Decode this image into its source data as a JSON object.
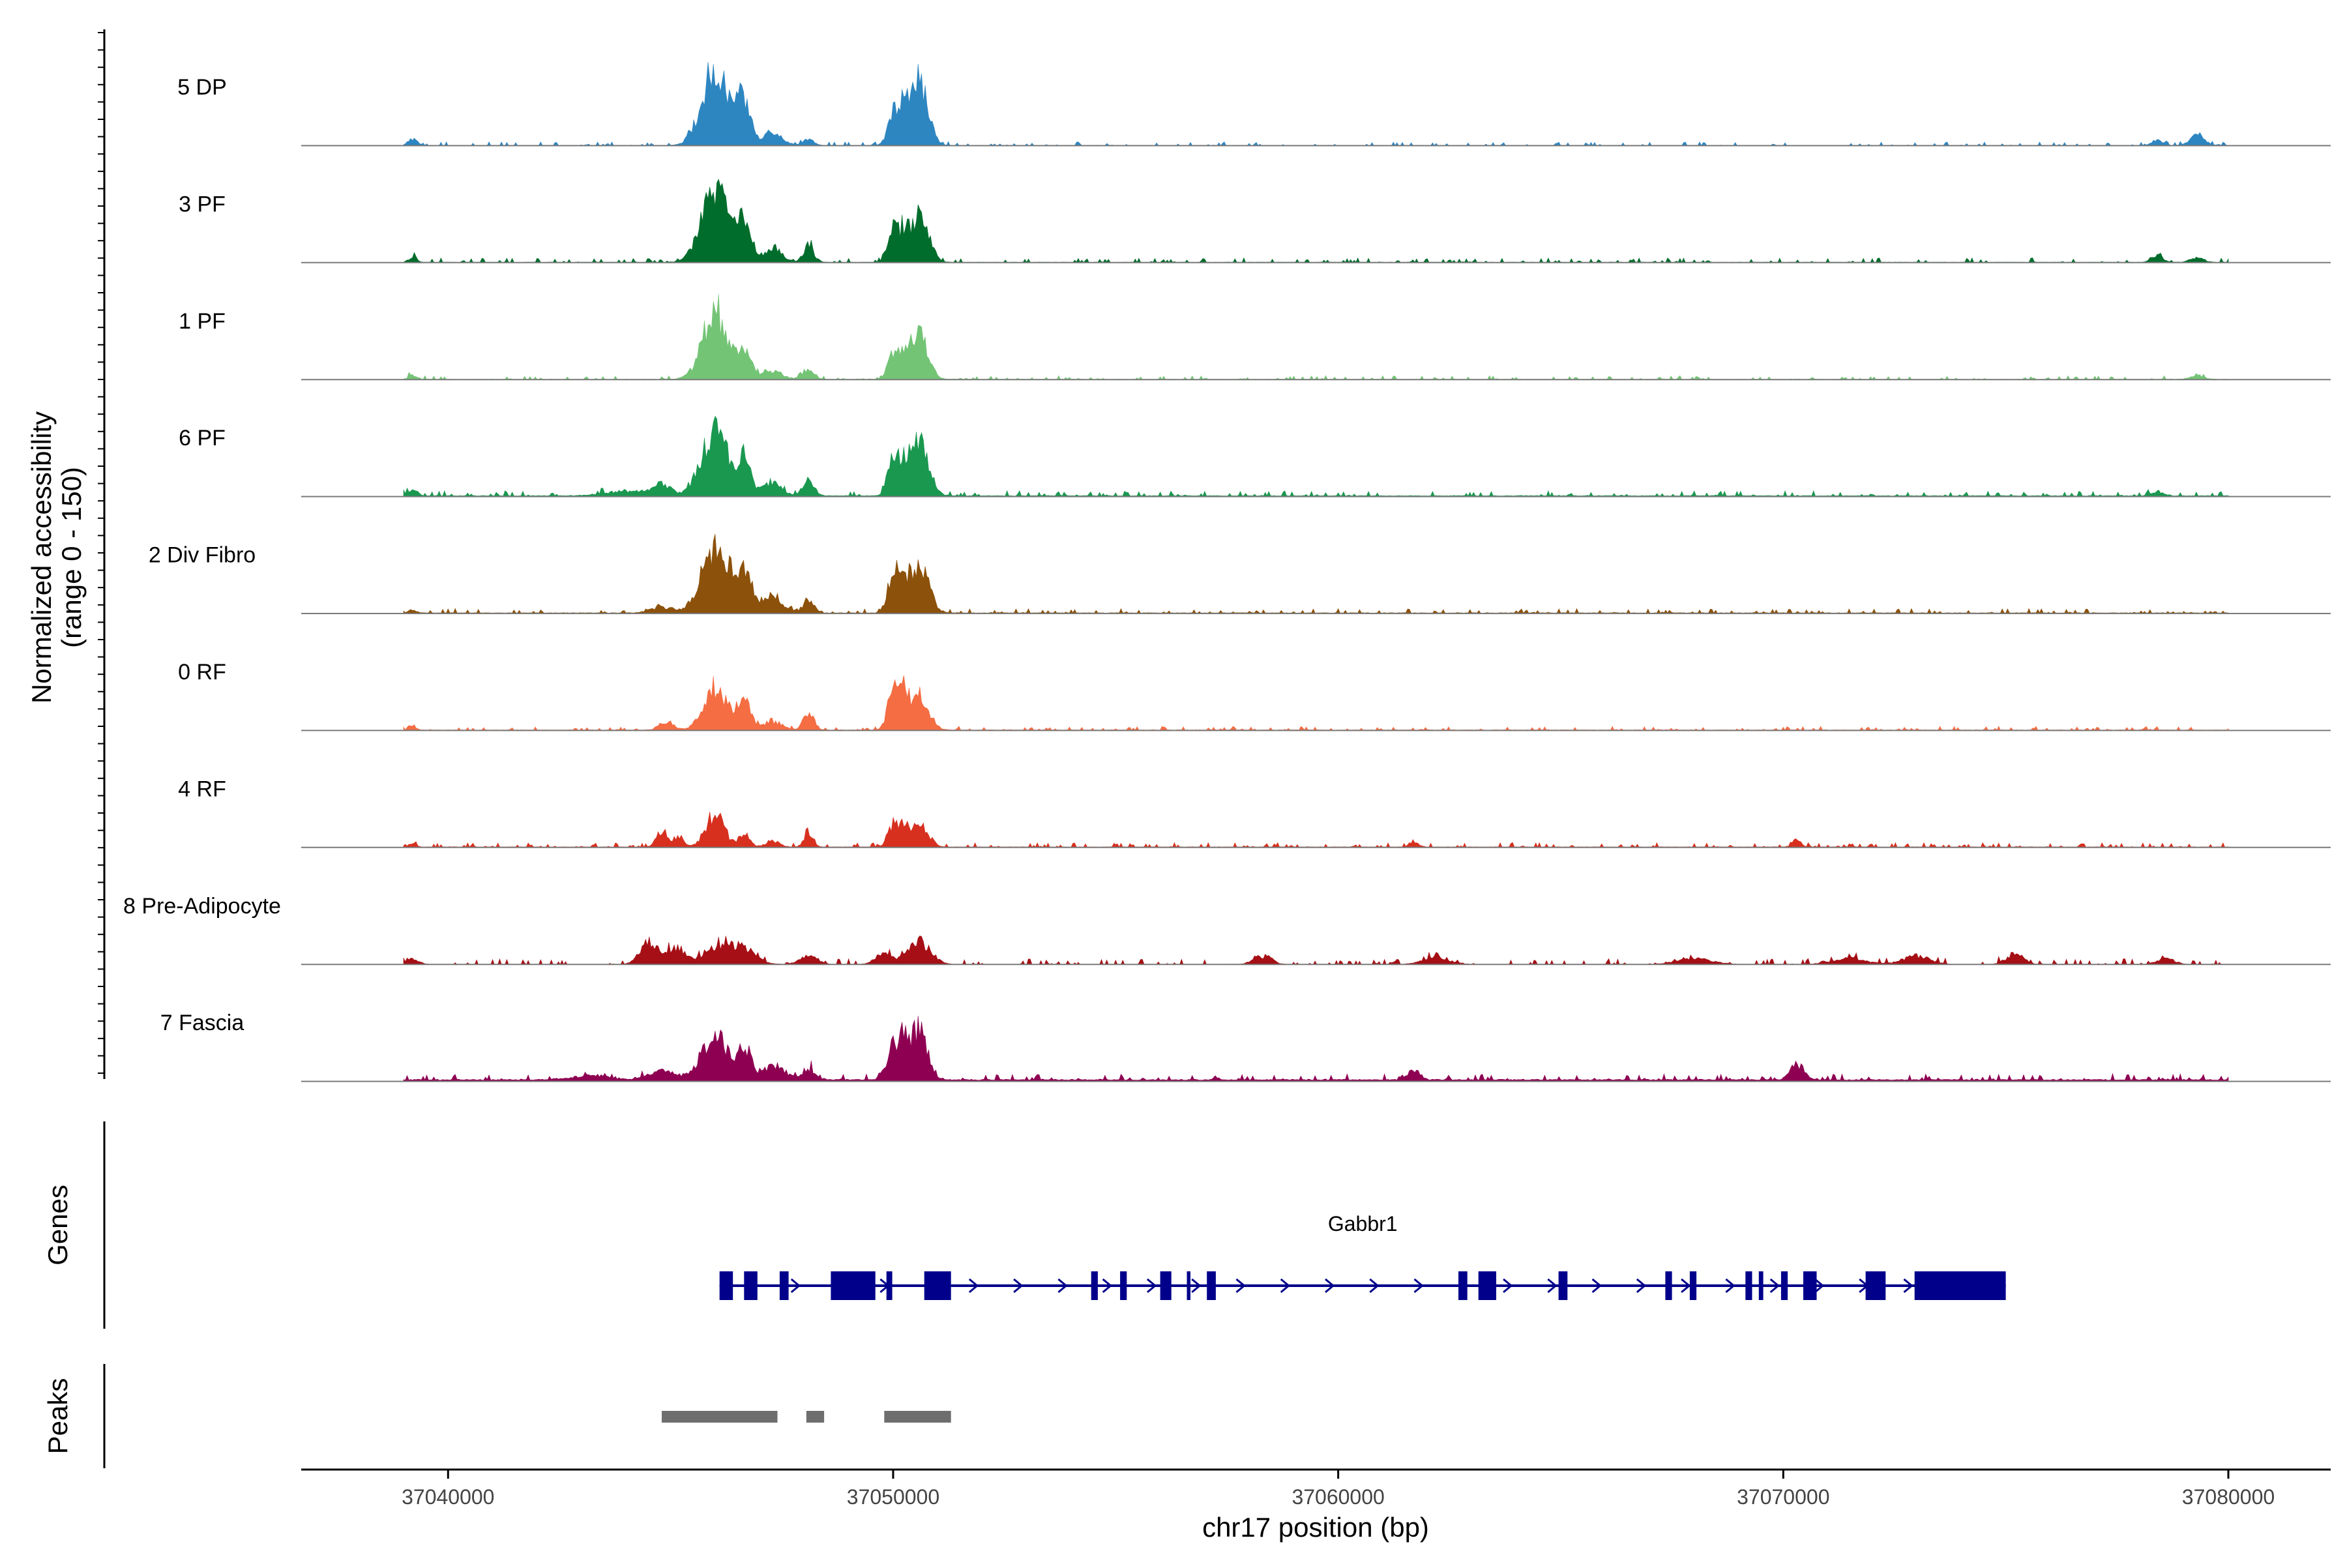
{
  "chart_data": {
    "type": "area",
    "title": "",
    "region": "chr17",
    "xlabel": "chr17 position (bp)",
    "ylabel": "Normalized accessibility",
    "ylabel_range": "(range 0 - 150)",
    "xlim": [
      37036700,
      37082300
    ],
    "data_extent": [
      37039000,
      37080000
    ],
    "ylim": [
      0,
      150
    ],
    "x_ticks": [
      37040000,
      37050000,
      37060000,
      37070000,
      37080000
    ],
    "x_tick_labels": [
      "37040000",
      "37050000",
      "37060000",
      "37070000",
      "37080000"
    ],
    "series": [
      {
        "name": "5 DP",
        "color": "#2E86C1",
        "peaks": [
          [
            37039200,
            12,
            100
          ],
          [
            37046000,
            130,
            300
          ],
          [
            37046650,
            75,
            150
          ],
          [
            37047300,
            25,
            200
          ],
          [
            37048100,
            10,
            120
          ],
          [
            37050000,
            60,
            120
          ],
          [
            37050250,
            70,
            100
          ],
          [
            37050600,
            120,
            180
          ],
          [
            37078400,
            10,
            120
          ],
          [
            37079300,
            18,
            160
          ]
        ],
        "noise": 2.5,
        "background": 0.5
      },
      {
        "name": "3 PF",
        "color": "#006D2C",
        "peaks": [
          [
            37039200,
            10,
            80
          ],
          [
            37046000,
            125,
            300
          ],
          [
            37046650,
            70,
            150
          ],
          [
            37047300,
            25,
            200
          ],
          [
            37048100,
            30,
            120
          ],
          [
            37050000,
            60,
            120
          ],
          [
            37050250,
            45,
            100
          ],
          [
            37050600,
            85,
            200
          ],
          [
            37078400,
            12,
            120
          ],
          [
            37079300,
            8,
            150
          ]
        ],
        "noise": 3,
        "background": 0.8
      },
      {
        "name": "1 PF",
        "color": "#74C476",
        "peaks": [
          [
            37039200,
            8,
            80
          ],
          [
            37046000,
            120,
            280
          ],
          [
            37046650,
            55,
            150
          ],
          [
            37047300,
            15,
            200
          ],
          [
            37048100,
            20,
            120
          ],
          [
            37050000,
            45,
            120
          ],
          [
            37050250,
            40,
            100
          ],
          [
            37050600,
            85,
            180
          ],
          [
            37079300,
            6,
            150
          ]
        ],
        "noise": 2.5,
        "background": 0.7
      },
      {
        "name": "6 PF",
        "color": "#1A9850",
        "peaks": [
          [
            37039200,
            12,
            100
          ],
          [
            37044000,
            8,
            500
          ],
          [
            37044800,
            18,
            200
          ],
          [
            37046000,
            115,
            300
          ],
          [
            37046650,
            60,
            150
          ],
          [
            37047300,
            25,
            200
          ],
          [
            37048100,
            30,
            120
          ],
          [
            37050000,
            70,
            120
          ],
          [
            37050250,
            50,
            100
          ],
          [
            37050600,
            95,
            200
          ],
          [
            37078400,
            8,
            120
          ]
        ],
        "noise": 3.5,
        "background": 1.5
      },
      {
        "name": "2 Div Fibro",
        "color": "#8C510A",
        "peaks": [
          [
            37039200,
            6,
            80
          ],
          [
            37044800,
            10,
            250
          ],
          [
            37046000,
            120,
            300
          ],
          [
            37046650,
            75,
            180
          ],
          [
            37047300,
            30,
            220
          ],
          [
            37048100,
            25,
            120
          ],
          [
            37050000,
            75,
            120
          ],
          [
            37050250,
            50,
            100
          ],
          [
            37050600,
            90,
            200
          ]
        ],
        "noise": 3,
        "background": 1.2
      },
      {
        "name": "0 RF",
        "color": "#F46D43",
        "peaks": [
          [
            37039200,
            6,
            80
          ],
          [
            37044900,
            15,
            150
          ],
          [
            37046000,
            80,
            250
          ],
          [
            37046650,
            55,
            150
          ],
          [
            37047300,
            15,
            200
          ],
          [
            37048100,
            30,
            120
          ],
          [
            37050000,
            70,
            120
          ],
          [
            37050250,
            55,
            100
          ],
          [
            37050600,
            60,
            200
          ]
        ],
        "noise": 2.5,
        "background": 1
      },
      {
        "name": "4 RF",
        "color": "#D7301F",
        "peaks": [
          [
            37039200,
            6,
            80
          ],
          [
            37044800,
            28,
            120
          ],
          [
            37045200,
            18,
            100
          ],
          [
            37046000,
            60,
            200
          ],
          [
            37046650,
            25,
            120
          ],
          [
            37047300,
            10,
            150
          ],
          [
            37048100,
            28,
            100
          ],
          [
            37050000,
            40,
            120
          ],
          [
            37050250,
            35,
            100
          ],
          [
            37050600,
            45,
            180
          ],
          [
            37061700,
            10,
            100
          ],
          [
            37070300,
            12,
            100
          ]
        ],
        "noise": 3,
        "background": 1
      },
      {
        "name": "8 Pre-Adipocyte",
        "color": "#A50F15",
        "peaks": [
          [
            37039200,
            10,
            150
          ],
          [
            37044500,
            40,
            200
          ],
          [
            37045100,
            30,
            200
          ],
          [
            37046000,
            28,
            300
          ],
          [
            37046600,
            28,
            300
          ],
          [
            37048100,
            15,
            200
          ],
          [
            37049800,
            20,
            200
          ],
          [
            37050600,
            40,
            250
          ],
          [
            37058300,
            15,
            200
          ],
          [
            37062200,
            12,
            300
          ],
          [
            37068000,
            10,
            400
          ],
          [
            37071500,
            10,
            400
          ],
          [
            37073000,
            15,
            300
          ],
          [
            37075200,
            18,
            200
          ],
          [
            37078600,
            10,
            200
          ]
        ],
        "noise": 4,
        "background": 0
      },
      {
        "name": "7 Fascia",
        "color": "#8E0152",
        "peaks": [
          [
            37043200,
            8,
            400
          ],
          [
            37044800,
            15,
            300
          ],
          [
            37046000,
            80,
            300
          ],
          [
            37046650,
            50,
            150
          ],
          [
            37047300,
            25,
            250
          ],
          [
            37048100,
            20,
            150
          ],
          [
            37050000,
            55,
            150
          ],
          [
            37050250,
            60,
            120
          ],
          [
            37050600,
            90,
            180
          ],
          [
            37061700,
            18,
            120
          ],
          [
            37070300,
            28,
            150
          ]
        ],
        "noise": 4,
        "background": 3
      }
    ],
    "gene": {
      "name": "Gabbr1",
      "color": "#00008B",
      "start": 37046100,
      "end": 37075000,
      "strand": "+",
      "exons": [
        [
          37046100,
          37046400
        ],
        [
          37046650,
          37046950
        ],
        [
          37047450,
          37047650
        ],
        [
          37048600,
          37049600
        ],
        [
          37049850,
          37049980
        ],
        [
          37050700,
          37051300
        ],
        [
          37054450,
          37054600
        ],
        [
          37055100,
          37055250
        ],
        [
          37056000,
          37056250
        ],
        [
          37056600,
          37056680
        ],
        [
          37057050,
          37057250
        ],
        [
          37062700,
          37062900
        ],
        [
          37063150,
          37063550
        ],
        [
          37064950,
          37065150
        ],
        [
          37067350,
          37067500
        ],
        [
          37067900,
          37068050
        ],
        [
          37069150,
          37069300
        ],
        [
          37069450,
          37069550
        ],
        [
          37069950,
          37070100
        ],
        [
          37070450,
          37070750
        ],
        [
          37071850,
          37072300
        ],
        [
          37072950,
          37075000
        ]
      ]
    },
    "peaks_track": [
      [
        37044800,
        37047400
      ],
      [
        37048050,
        37048450
      ],
      [
        37049800,
        37051300
      ]
    ],
    "peaks_color": "#6E6E6E",
    "panel_labels": {
      "genes": "Genes",
      "peaks": "Peaks"
    }
  }
}
